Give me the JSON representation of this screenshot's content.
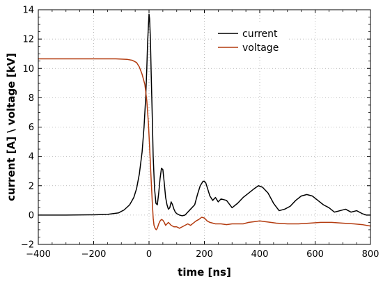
{
  "chart_data": {
    "type": "line",
    "xlabel": "time [ns]",
    "ylabel": "current [A] \\ voltage [kV]",
    "xlim": [
      -400,
      800
    ],
    "ylim": [
      -2,
      14
    ],
    "xticks": [
      -400,
      -200,
      0,
      200,
      400,
      600,
      800
    ],
    "yticks": [
      -2,
      0,
      2,
      4,
      6,
      8,
      10,
      12,
      14
    ],
    "grid": true,
    "legend_position": "top-right",
    "series": [
      {
        "name": "current",
        "color": "#000000",
        "x": [
          -400,
          -300,
          -200,
          -150,
          -110,
          -90,
          -70,
          -55,
          -45,
          -35,
          -25,
          -18,
          -12,
          -8,
          -5,
          -2,
          0,
          2,
          5,
          8,
          12,
          15,
          20,
          25,
          30,
          35,
          40,
          45,
          50,
          55,
          60,
          65,
          70,
          75,
          80,
          85,
          90,
          95,
          100,
          110,
          120,
          130,
          150,
          165,
          175,
          185,
          195,
          200,
          205,
          210,
          215,
          220,
          230,
          240,
          250,
          260,
          280,
          300,
          320,
          340,
          360,
          380,
          395,
          410,
          430,
          450,
          470,
          490,
          510,
          530,
          550,
          570,
          590,
          610,
          630,
          650,
          670,
          690,
          710,
          730,
          750,
          770,
          785,
          800
        ],
        "y": [
          0.0,
          0.0,
          0.02,
          0.05,
          0.15,
          0.35,
          0.7,
          1.2,
          1.8,
          2.8,
          4.3,
          6.0,
          8.0,
          10.0,
          11.8,
          13.0,
          13.7,
          13.4,
          12.0,
          9.5,
          6.5,
          4.0,
          1.8,
          0.8,
          0.7,
          1.5,
          2.5,
          3.2,
          3.1,
          2.2,
          1.2,
          0.7,
          0.4,
          0.5,
          0.9,
          0.7,
          0.4,
          0.2,
          0.1,
          0.0,
          -0.05,
          0.0,
          0.4,
          0.7,
          1.4,
          2.0,
          2.3,
          2.3,
          2.2,
          1.9,
          1.6,
          1.3,
          1.0,
          1.2,
          0.9,
          1.1,
          1.0,
          0.5,
          0.8,
          1.2,
          1.5,
          1.8,
          2.0,
          1.9,
          1.5,
          0.8,
          0.3,
          0.4,
          0.6,
          1.0,
          1.3,
          1.4,
          1.3,
          1.0,
          0.7,
          0.5,
          0.2,
          0.3,
          0.4,
          0.2,
          0.3,
          0.1,
          0.0,
          0.0
        ]
      },
      {
        "name": "voltage",
        "color": "#b33b0f",
        "x": [
          -400,
          -300,
          -200,
          -120,
          -80,
          -60,
          -45,
          -35,
          -25,
          -15,
          -8,
          -2,
          3,
          8,
          12,
          15,
          18,
          22,
          26,
          30,
          35,
          40,
          45,
          50,
          55,
          60,
          70,
          80,
          90,
          100,
          110,
          120,
          130,
          140,
          150,
          160,
          170,
          180,
          190,
          200,
          210,
          220,
          240,
          260,
          280,
          300,
          320,
          340,
          360,
          380,
          400,
          420,
          440,
          460,
          500,
          540,
          580,
          620,
          660,
          700,
          740,
          770,
          800
        ],
        "y": [
          10.65,
          10.65,
          10.65,
          10.65,
          10.62,
          10.55,
          10.4,
          10.1,
          9.6,
          8.9,
          7.8,
          6.2,
          4.3,
          2.3,
          0.8,
          -0.2,
          -0.7,
          -0.9,
          -1.0,
          -0.9,
          -0.6,
          -0.4,
          -0.3,
          -0.35,
          -0.5,
          -0.7,
          -0.5,
          -0.7,
          -0.8,
          -0.8,
          -0.9,
          -0.8,
          -0.7,
          -0.6,
          -0.7,
          -0.55,
          -0.4,
          -0.3,
          -0.15,
          -0.2,
          -0.4,
          -0.5,
          -0.6,
          -0.6,
          -0.65,
          -0.6,
          -0.6,
          -0.6,
          -0.5,
          -0.45,
          -0.4,
          -0.45,
          -0.5,
          -0.55,
          -0.6,
          -0.6,
          -0.55,
          -0.5,
          -0.5,
          -0.55,
          -0.6,
          -0.65,
          -0.75
        ]
      }
    ]
  }
}
